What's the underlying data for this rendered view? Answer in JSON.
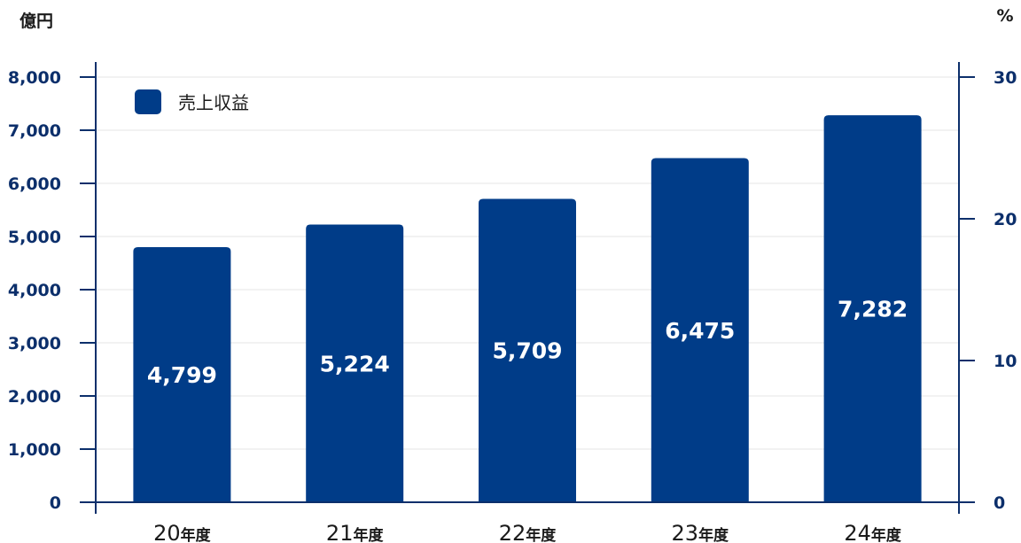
{
  "chart_data": {
    "type": "bar",
    "categories": [
      "20",
      "21",
      "22",
      "23",
      "24"
    ],
    "category_suffix": "年度",
    "series": [
      {
        "name": "売上収益",
        "values": [
          4799,
          5224,
          5709,
          6475,
          7282
        ],
        "color": "#003c88"
      }
    ],
    "value_labels": [
      "4,799",
      "5,224",
      "5,709",
      "6,475",
      "7,282"
    ],
    "y_left": {
      "unit": "億円",
      "range": [
        0,
        8000
      ],
      "ticks": [
        0,
        1000,
        2000,
        3000,
        4000,
        5000,
        6000,
        7000,
        8000
      ],
      "tick_labels": [
        "0",
        "1,000",
        "2,000",
        "3,000",
        "4,000",
        "5,000",
        "6,000",
        "7,000",
        "8,000"
      ]
    },
    "y_right": {
      "unit": "%",
      "range": [
        0,
        30
      ],
      "ticks": [
        0,
        10,
        20,
        30
      ],
      "tick_labels": [
        "0",
        "10",
        "20",
        "30"
      ]
    },
    "grid": true,
    "legend_position": "top-left",
    "colors": {
      "bar": "#003c88",
      "axis": "#0c2f6b",
      "grid": "#e6e6e6"
    }
  }
}
